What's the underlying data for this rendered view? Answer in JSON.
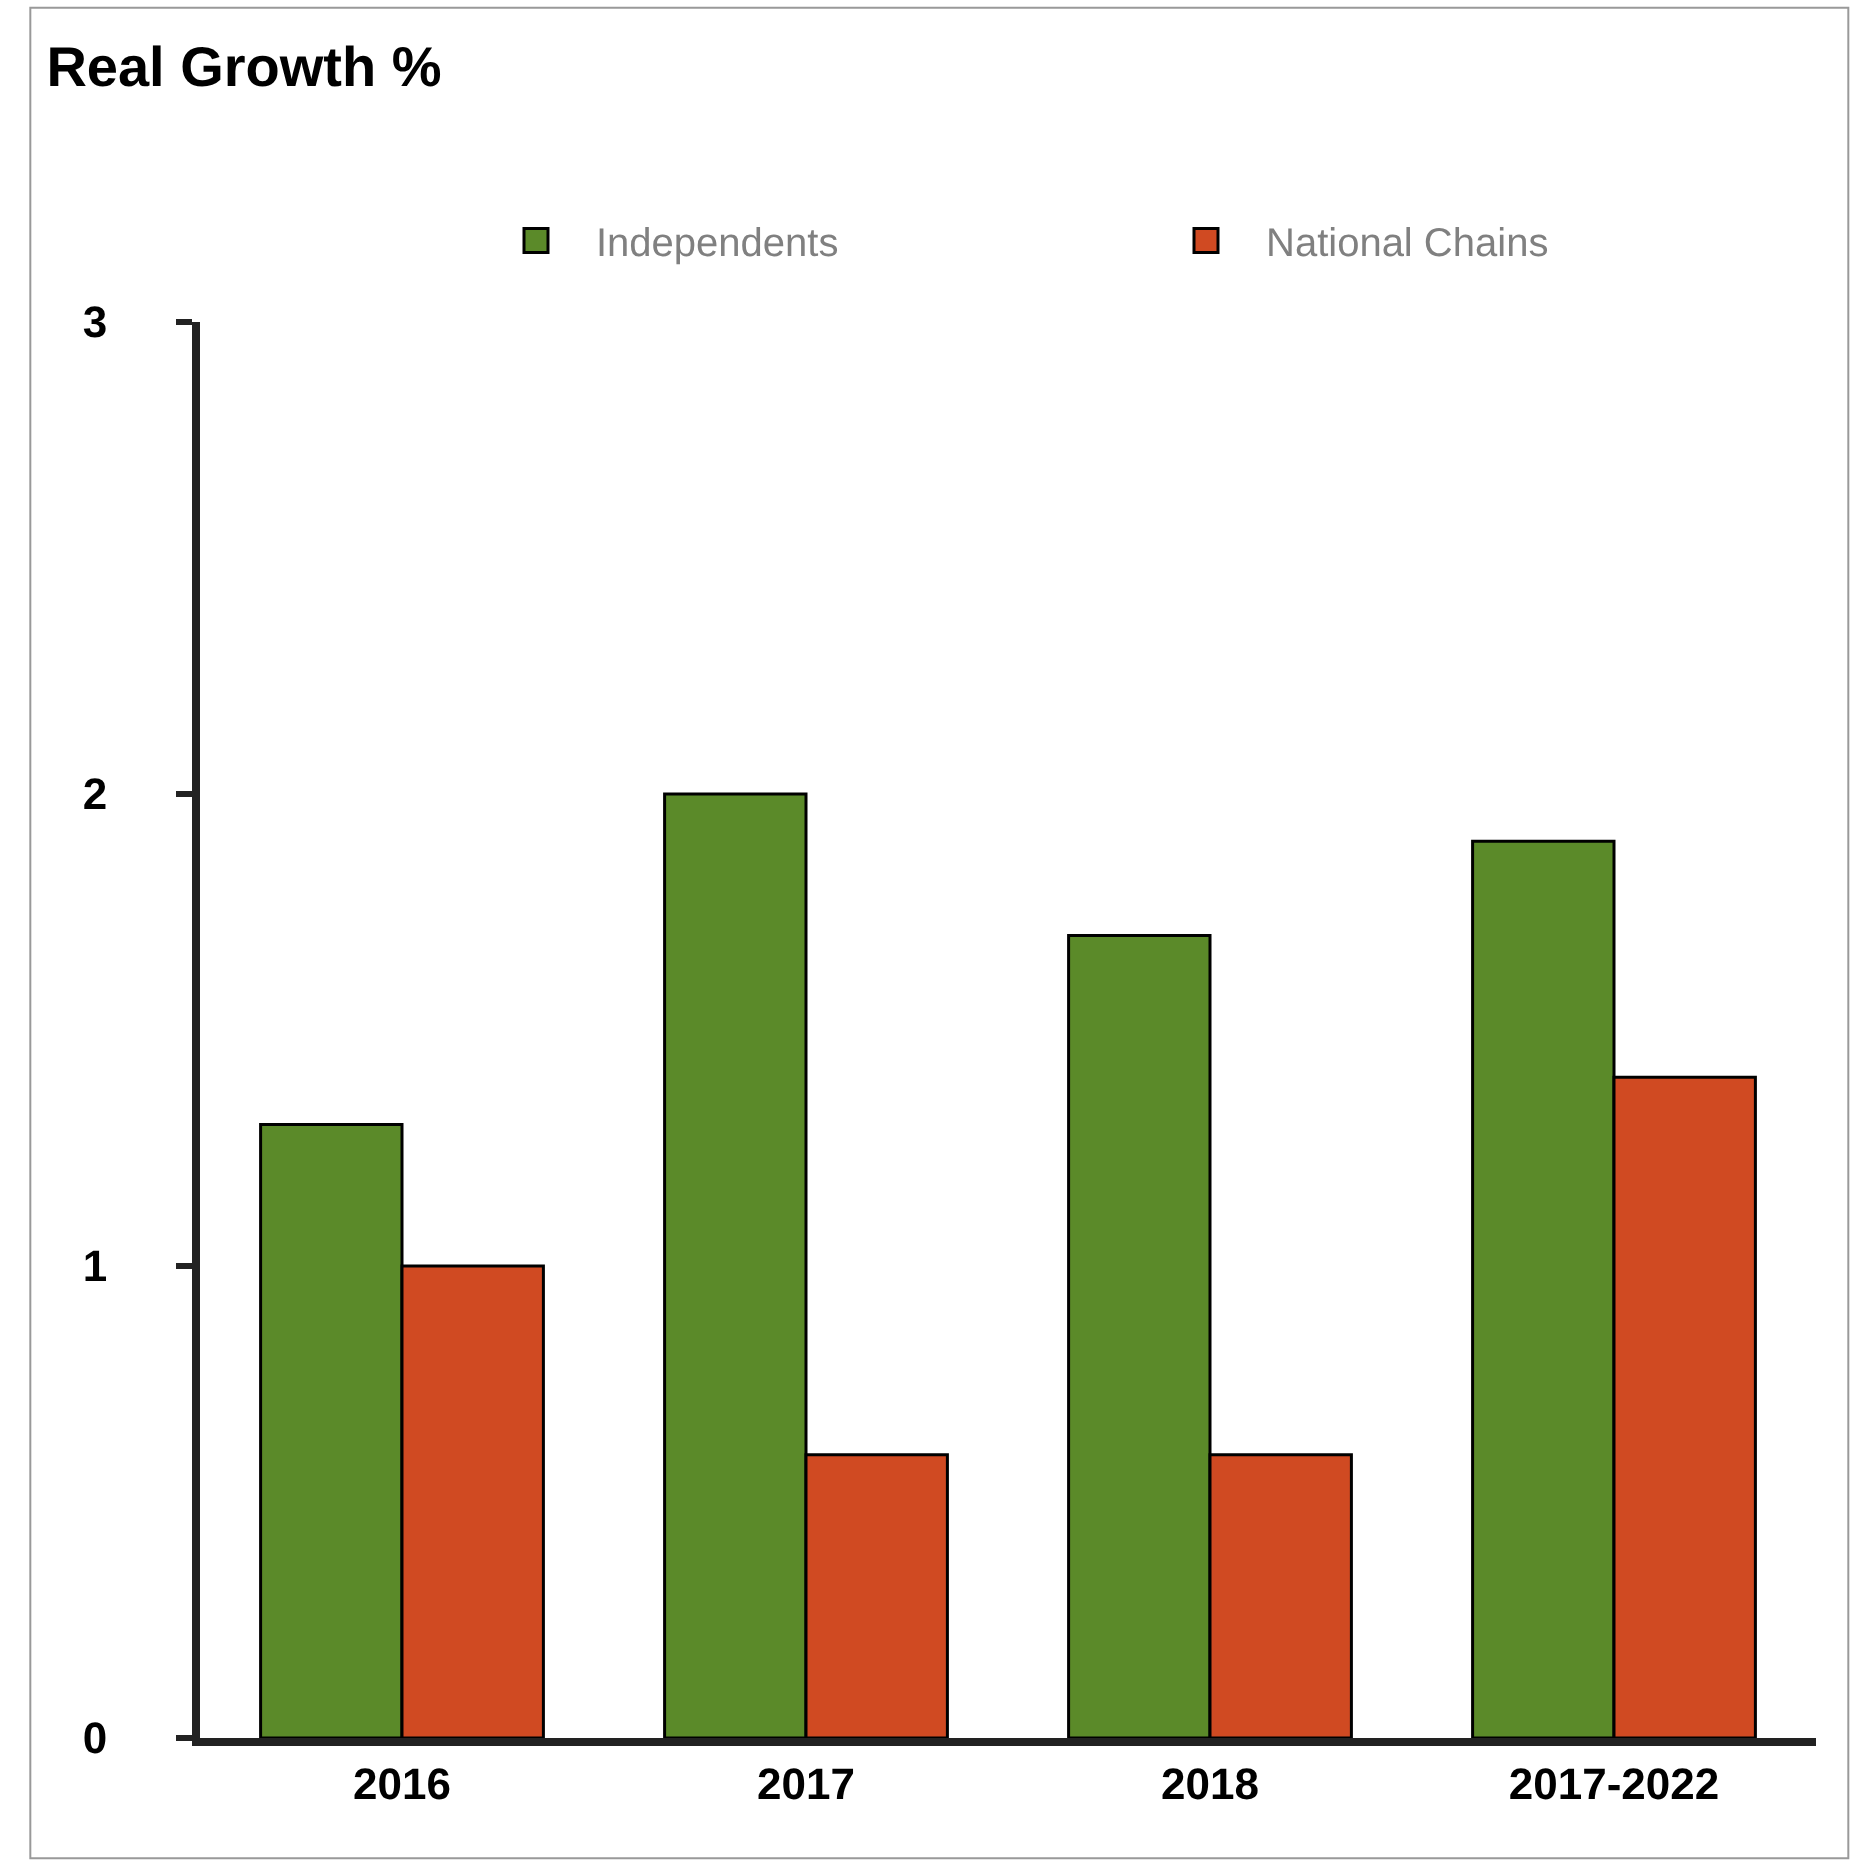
{
  "chart_data": {
    "type": "bar",
    "title": "Real Growth %",
    "categories": [
      "2016",
      "2017",
      "2018",
      "2017-2022"
    ],
    "series": [
      {
        "name": "Independents",
        "color": "#5b8a29",
        "values": [
          1.3,
          2.0,
          1.7,
          1.9
        ]
      },
      {
        "name": "National Chains",
        "color": "#d04a22",
        "values": [
          1.0,
          0.6,
          0.6,
          1.4
        ]
      }
    ],
    "ylim": [
      0,
      3
    ],
    "yticks": [
      0,
      1,
      2,
      3
    ],
    "legend": "top right"
  }
}
